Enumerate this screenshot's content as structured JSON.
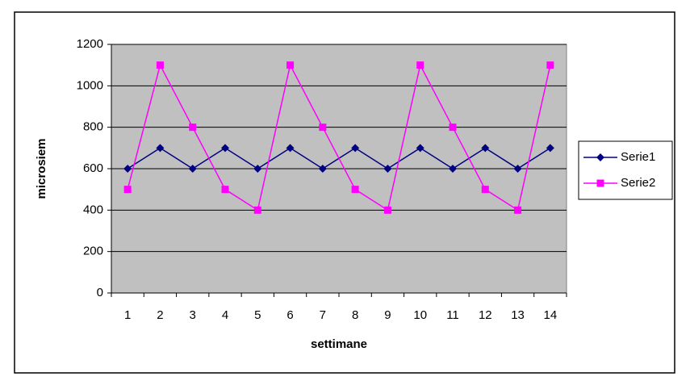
{
  "chart_data": {
    "type": "line",
    "x_label": "settimane",
    "y_label": "microsiem",
    "categories": [
      "1",
      "2",
      "3",
      "4",
      "5",
      "6",
      "7",
      "8",
      "9",
      "10",
      "11",
      "12",
      "13",
      "14"
    ],
    "series": [
      {
        "name": "Serie1",
        "color": "#000080",
        "marker": "diamond",
        "values": [
          600,
          700,
          600,
          700,
          600,
          700,
          600,
          700,
          600,
          700,
          600,
          700,
          600,
          700
        ]
      },
      {
        "name": "Serie2",
        "color": "#ff00ff",
        "marker": "square",
        "values": [
          500,
          1100,
          800,
          500,
          400,
          1100,
          800,
          500,
          400,
          1100,
          800,
          500,
          400,
          1100
        ]
      }
    ],
    "ylim": [
      0,
      1200
    ],
    "yticks": [
      0,
      200,
      400,
      600,
      800,
      1000,
      1200
    ],
    "grid": true,
    "plot_background": "#c0c0c0",
    "legend": "right"
  }
}
